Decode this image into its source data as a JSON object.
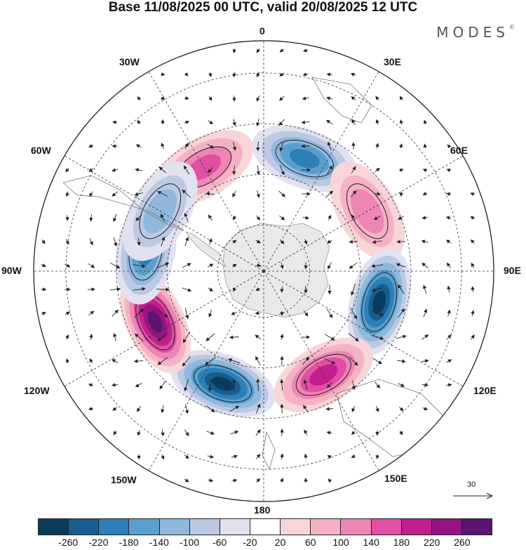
{
  "header": {
    "title": "Base 11/08/2025 00 UTC, valid 20/08/2025 12 UTC",
    "brand": "MODES",
    "brand_mark": "©"
  },
  "map": {
    "projection": "South polar stereographic",
    "longitude_labels": {
      "top": "0",
      "top_right": "30E",
      "upper_right": "60E",
      "right": "90E",
      "lower_right": "120E",
      "bottom_right": "150E",
      "bottom": "180",
      "bottom_left": "150W",
      "lower_left": "120W",
      "left": "90W",
      "upper_left": "60W",
      "top_left": "30W"
    },
    "anomaly_centers": [
      {
        "name": "positive-30w",
        "lon": -30,
        "sign": "positive",
        "level": 140
      },
      {
        "name": "negative-20e",
        "lon": 20,
        "sign": "negative",
        "level": -180
      },
      {
        "name": "positive-60e",
        "lon": 60,
        "sign": "positive",
        "level": 100
      },
      {
        "name": "negative-105e",
        "lon": 105,
        "sign": "negative",
        "level": -260
      },
      {
        "name": "positive-150e",
        "lon": 150,
        "sign": "positive",
        "level": 180
      },
      {
        "name": "negative-160w",
        "lon": -160,
        "sign": "negative",
        "level": -260
      },
      {
        "name": "positive-115w",
        "lon": -115,
        "sign": "positive",
        "level": 260
      },
      {
        "name": "negative-80w",
        "lon": -80,
        "sign": "negative",
        "level": -180
      },
      {
        "name": "negative-60w",
        "lon": -60,
        "sign": "negative",
        "level": -100
      }
    ],
    "reference_vector": "30"
  },
  "colorbar": {
    "colors": [
      "#0d3b5c",
      "#175e8f",
      "#2d7fb8",
      "#5a9fcc",
      "#8fb8dc",
      "#bcc9e4",
      "#e1e1ef",
      "#ffffff",
      "#f8d6d8",
      "#f4b2c4",
      "#ee86b5",
      "#e04fa4",
      "#c21f8e",
      "#951481",
      "#5c1473"
    ],
    "labels": [
      "-260",
      "-220",
      "-180",
      "-140",
      "-100",
      "-60",
      "-20",
      "20",
      "60",
      "100",
      "140",
      "180",
      "220",
      "260"
    ]
  }
}
